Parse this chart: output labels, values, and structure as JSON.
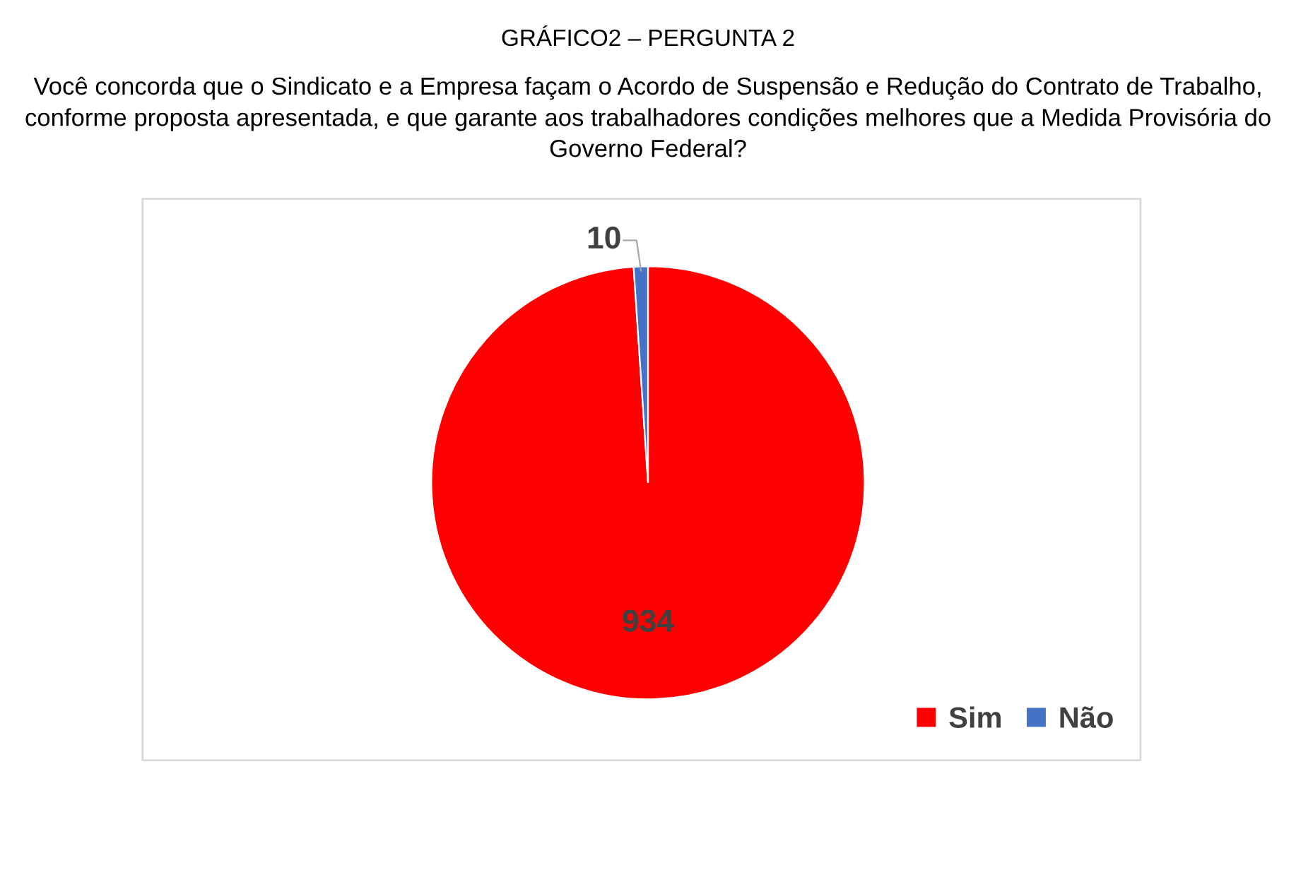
{
  "chart_data": {
    "type": "pie",
    "title": "GRÁFICO2 – PERGUNTA 2",
    "subtitle": "Você concorda que o Sindicato e a Empresa façam o Acordo de Suspensão e Redução do Contrato de Trabalho, conforme proposta apresentada, e que garante aos trabalhadores condições melhores que a Medida Provisória do Governo Federal?",
    "categories": [
      "Sim",
      "Não"
    ],
    "values": [
      934,
      10
    ],
    "colors": [
      "#ff0000",
      "#4472c4"
    ],
    "data_labels": true,
    "legend": "bottom right"
  }
}
